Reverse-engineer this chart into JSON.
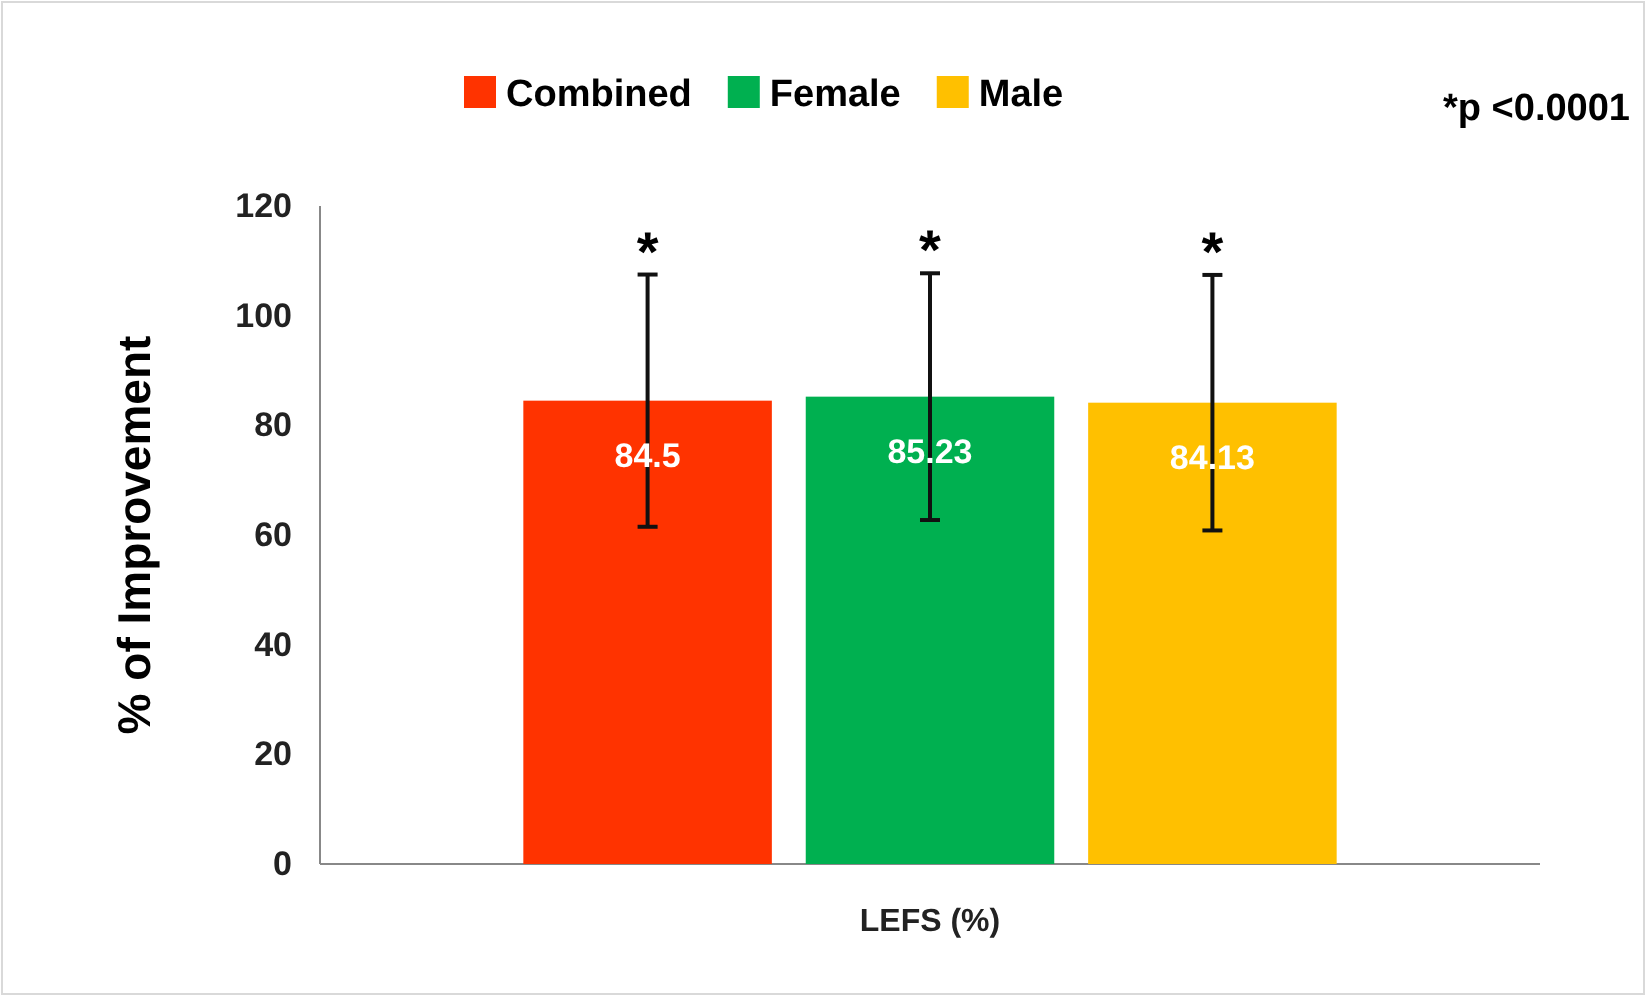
{
  "chart_data": {
    "type": "bar",
    "ylabel": "% of Improvement",
    "categories": [
      "LEFS (%)"
    ],
    "series": [
      {
        "name": "Combined",
        "color": "#ff3300",
        "values": [
          84.5
        ],
        "errors": [
          23
        ]
      },
      {
        "name": "Female",
        "color": "#00b050",
        "values": [
          85.23
        ],
        "errors": [
          22.5
        ]
      },
      {
        "name": "Male",
        "color": "#ffc000",
        "values": [
          84.13
        ],
        "errors": [
          23.3
        ]
      }
    ],
    "ylim": [
      0,
      120
    ],
    "yticks": [
      0,
      20,
      40,
      60,
      80,
      100,
      120
    ],
    "data_labels": true,
    "legend": "top",
    "grid": false,
    "annotations": [
      "*",
      "*",
      "*",
      "*p <0.0001"
    ]
  }
}
